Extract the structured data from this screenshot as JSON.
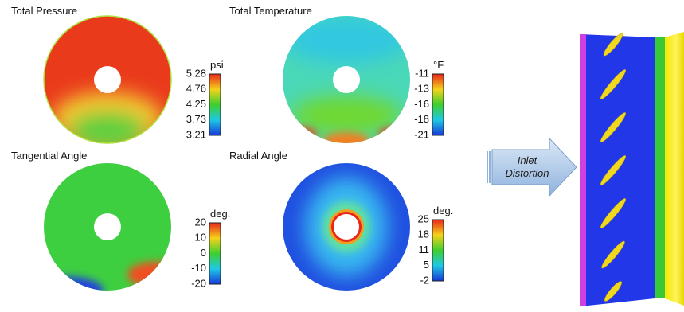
{
  "panels": [
    {
      "title": "Total Pressure",
      "unit": "psi",
      "ticks": [
        "5.28",
        "4.76",
        "4.25",
        "3.73",
        "3.21"
      ]
    },
    {
      "title": "Total Temperature",
      "unit": "°F",
      "ticks": [
        "-11",
        "-13",
        "-16",
        "-18",
        "-21"
      ]
    },
    {
      "title": "Tangential Angle",
      "unit": "deg.",
      "ticks": [
        "20",
        "10",
        "0",
        "-10",
        "-20"
      ]
    },
    {
      "title": "Radial Angle",
      "unit": "deg.",
      "ticks": [
        "25",
        "18",
        "11",
        "5",
        "-2"
      ]
    }
  ],
  "arrow": {
    "lines": [
      "Inlet",
      "Distortion"
    ]
  }
}
